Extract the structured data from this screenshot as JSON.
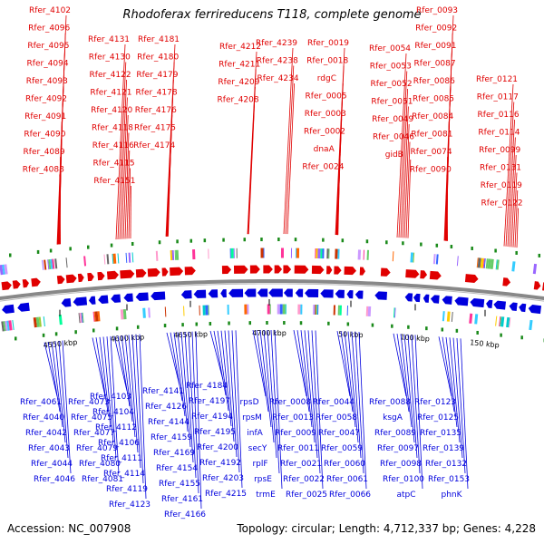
{
  "title": "Rhodoferax ferrireducens T118, complete genome",
  "footer": {
    "accession": "Accession: NC_007908",
    "info": "Topology: circular; Length: 4,712,337 bp; Genes: 4,228"
  },
  "colors": {
    "plus_strand": "#e00000",
    "minus_strand": "#0000dd",
    "backbone": "#888888",
    "tick_mark": "#1a8a1a"
  },
  "scale_ticks": [
    "4550 kbp",
    "4600 kbp",
    "4650 kbp",
    "4700 kbp",
    "50 kbp",
    "100 kbp",
    "150 kbp"
  ],
  "top_labels": [
    "Rfer_4102",
    "Rfer_4096",
    "Rfer_4095",
    "Rfer_4094",
    "Rfer_4093",
    "Rfer_4092",
    "Rfer_4091",
    "Rfer_4090",
    "Rfer_4089",
    "Rfer_4088",
    "Rfer_4131",
    "Rfer_4130",
    "Rfer_4122",
    "Rfer_4121",
    "Rfer_4120",
    "Rfer_4118",
    "Rfer_4116",
    "Rfer_4115",
    "Rfer_4151",
    "Rfer_4181",
    "Rfer_4180",
    "Rfer_4179",
    "Rfer_4178",
    "Rfer_4176",
    "Rfer_4175",
    "Rfer_4174",
    "Rfer_4212",
    "Rfer_4211",
    "Rfer_4209",
    "Rfer_4208",
    "Rfer_4239",
    "Rfer_4238",
    "Rfer_4234",
    "Rfer_0019",
    "Rfer_0018",
    "rdgC",
    "Rfer_0005",
    "Rfer_0003",
    "Rfer_0002",
    "dnaA",
    "Rfer_0024",
    "Rfer_0054",
    "Rfer_0053",
    "Rfer_0052",
    "Rfer_0051",
    "Rfer_0049",
    "Rfer_0046",
    "gidB",
    "Rfer_0093",
    "Rfer_0092",
    "Rfer_0091",
    "Rfer_0087",
    "Rfer_0086",
    "Rfer_0085",
    "Rfer_0084",
    "Rfer_0081",
    "Rfer_0074",
    "Rfer_0090",
    "Rfer_0121",
    "Rfer_0117",
    "Rfer_0116",
    "Rfer_0114",
    "Rfer_0099",
    "Rfer_0131",
    "Rfer_0119",
    "Rfer_0122"
  ],
  "bottom_labels": [
    "Rfer_4061",
    "Rfer_4040",
    "Rfer_4042",
    "Rfer_4043",
    "Rfer_4044",
    "Rfer_4046",
    "Rfer_4073",
    "Rfer_4075",
    "Rfer_4077",
    "Rfer_4079",
    "Rfer_4080",
    "Rfer_4081",
    "Rfer_4103",
    "Rfer_4104",
    "Rfer_4112",
    "Rfer_4106",
    "Rfer_4111",
    "Rfer_4114",
    "Rfer_4119",
    "Rfer_4123",
    "Rfer_4141",
    "Rfer_4126",
    "Rfer_4144",
    "Rfer_4159",
    "Rfer_4169",
    "Rfer_4154",
    "Rfer_4155",
    "Rfer_4161",
    "Rfer_4166",
    "Rfer_4184",
    "Rfer_4197",
    "Rfer_4194",
    "Rfer_4195",
    "Rfer_4200",
    "Rfer_4192",
    "Rfer_4203",
    "Rfer_4215",
    "rpsD",
    "rpsM",
    "infA",
    "secY",
    "rplF",
    "rpsE",
    "trmE",
    "Rfer_0008",
    "Rfer_0013",
    "Rfer_0009",
    "Rfer_0011",
    "Rfer_0021",
    "Rfer_0022",
    "Rfer_0025",
    "Rfer_0044",
    "Rfer_0058",
    "Rfer_0047",
    "Rfer_0059",
    "Rfer_0060",
    "Rfer_0061",
    "Rfer_0066",
    "Rfer_0088",
    "ksgA",
    "Rfer_0089",
    "Rfer_0097",
    "Rfer_0098",
    "Rfer_0100",
    "atpC",
    "Rfer_0123",
    "Rfer_0125",
    "Rfer_0135",
    "Rfer_0139",
    "Rfer_0132",
    "Rfer_0153",
    "phnK"
  ]
}
